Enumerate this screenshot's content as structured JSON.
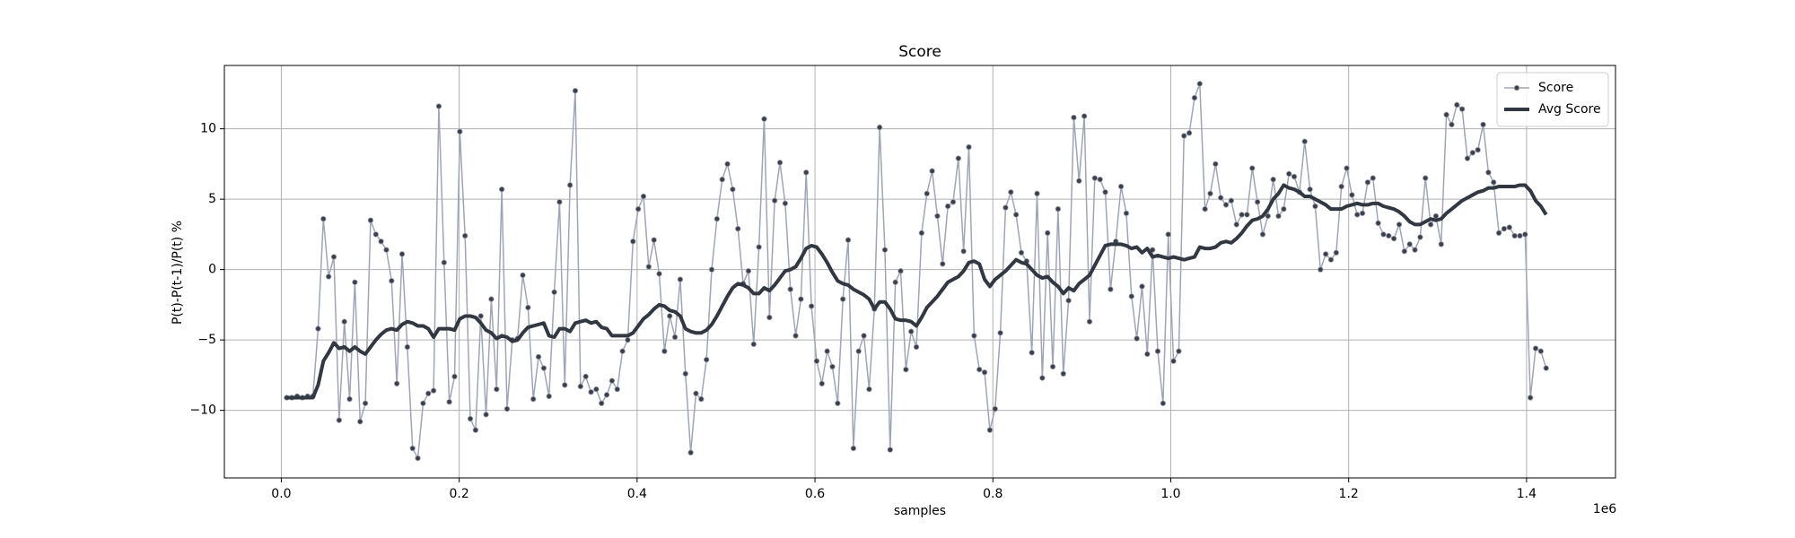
{
  "chart_data": {
    "type": "line",
    "title": "Score",
    "xlabel": "samples",
    "ylabel": "P(t)-P(t-1)/P(t) %",
    "x_offset_label": "1e6",
    "grid": true,
    "legend": "upper right",
    "xlim": [
      -64000,
      1500000
    ],
    "ylim": [
      -14.8,
      14.5
    ],
    "xticks": [
      {
        "value": 0,
        "label": "0.0"
      },
      {
        "value": 200000,
        "label": "0.2"
      },
      {
        "value": 400000,
        "label": "0.4"
      },
      {
        "value": 600000,
        "label": "0.6"
      },
      {
        "value": 800000,
        "label": "0.8"
      },
      {
        "value": 1000000,
        "label": "1.0"
      },
      {
        "value": 1200000,
        "label": "1.2"
      },
      {
        "value": 1400000,
        "label": "1.4"
      }
    ],
    "yticks": [
      {
        "value": -10,
        "label": "−10"
      },
      {
        "value": -5,
        "label": "−5"
      },
      0,
      5,
      10
    ],
    "x": [
      6000,
      11900,
      17800,
      23700,
      29600,
      35500,
      41400,
      47300,
      53200,
      59100,
      65000,
      70900,
      76800,
      82700,
      88600,
      94500,
      100400,
      106300,
      112200,
      118100,
      124000,
      129900,
      135800,
      141700,
      147600,
      153500,
      159400,
      165300,
      171200,
      177100,
      183000,
      188900,
      194800,
      200700,
      206600,
      212500,
      218400,
      224300,
      230200,
      236100,
      242000,
      247900,
      253800,
      259700,
      265600,
      271500,
      277400,
      283300,
      289200,
      295100,
      301000,
      306900,
      312800,
      318700,
      324600,
      330500,
      336400,
      342300,
      348200,
      354100,
      360000,
      365900,
      371800,
      377700,
      383600,
      389500,
      395400,
      401300,
      407200,
      413100,
      419000,
      424900,
      430800,
      436700,
      442600,
      448500,
      454400,
      460300,
      466200,
      472100,
      478000,
      483900,
      489800,
      495700,
      501600,
      507500,
      513400,
      519300,
      525200,
      531100,
      537000,
      542900,
      548800,
      554700,
      560600,
      566500,
      572400,
      578300,
      584200,
      590100,
      596000,
      601900,
      607800,
      613700,
      619600,
      625500,
      631400,
      637300,
      643200,
      649100,
      655000,
      660900,
      666800,
      672700,
      678600,
      684500,
      690400,
      696300,
      702200,
      708100,
      714000,
      719900,
      725800,
      731700,
      737600,
      743500,
      749400,
      755300,
      761200,
      767100,
      773000,
      778900,
      784800,
      790700,
      796600,
      802500,
      808400,
      814300,
      820200,
      826100,
      832000,
      837900,
      843800,
      849700,
      855600,
      861500,
      867400,
      873300,
      879200,
      885100,
      891000,
      896900,
      902800,
      908700,
      914600,
      920500,
      926400,
      932300,
      938200,
      944100,
      950000,
      955900,
      961800,
      967700,
      973600,
      979500,
      985400,
      991300,
      997200,
      1003100,
      1009000,
      1014900,
      1020800,
      1026700,
      1032600,
      1038500,
      1044400,
      1050300,
      1056200,
      1062100,
      1068000,
      1073900,
      1079800,
      1085700,
      1091600,
      1097500,
      1103400,
      1109300,
      1115200,
      1121100,
      1127000,
      1132900,
      1138800,
      1144700,
      1150600,
      1156500,
      1162400,
      1168300,
      1174200,
      1180100,
      1186000,
      1191900,
      1197800,
      1203700,
      1209600,
      1215500,
      1221400,
      1227300,
      1233200,
      1239100,
      1245000,
      1250900,
      1256800,
      1262700,
      1268600,
      1274500,
      1280400,
      1286300,
      1292200,
      1298100,
      1304000,
      1309900,
      1315800,
      1321700,
      1327600,
      1333500,
      1339400,
      1345300,
      1351200,
      1357100,
      1363000,
      1368900,
      1374800,
      1380700,
      1386600,
      1392500,
      1398400,
      1404300,
      1410200,
      1416100,
      1422000
    ],
    "series": [
      {
        "name": "Score",
        "color": "#a0a5b5",
        "marker_color": "#3a3f4a",
        "marker": "o",
        "line_width": 1.5,
        "values": [
          -9.1,
          -9.1,
          -9.0,
          -9.1,
          -9.0,
          -9.0,
          -4.2,
          3.6,
          -0.5,
          0.9,
          -10.7,
          -3.7,
          -9.2,
          -0.9,
          -10.8,
          -9.5,
          3.5,
          2.5,
          2.0,
          1.4,
          -0.8,
          -8.1,
          1.1,
          -5.5,
          -12.7,
          -13.4,
          -9.5,
          -8.8,
          -8.6,
          11.6,
          0.5,
          -9.4,
          -7.6,
          9.8,
          2.4,
          -10.6,
          -11.4,
          -3.3,
          -10.3,
          -2.1,
          -8.5,
          5.7,
          -9.9,
          -5.0,
          -4.9,
          -0.4,
          -2.7,
          -9.2,
          -6.2,
          -7.0,
          -9.0,
          -1.6,
          4.8,
          -8.2,
          6.0,
          12.7,
          -8.3,
          -7.6,
          -8.7,
          -8.5,
          -9.5,
          -8.9,
          -7.9,
          -8.5,
          -5.8,
          -5.0,
          2.0,
          4.3,
          5.2,
          0.2,
          2.1,
          -0.3,
          -5.8,
          -3.3,
          -4.8,
          -0.7,
          -7.4,
          -13.0,
          -8.8,
          -9.2,
          -6.4,
          0.0,
          3.6,
          6.4,
          7.5,
          5.7,
          2.9,
          -1.0,
          -0.1,
          -5.3,
          1.6,
          10.7,
          -3.4,
          4.9,
          7.6,
          4.7,
          -1.4,
          -4.7,
          -2.1,
          6.9,
          -2.6,
          -6.5,
          -8.1,
          -5.8,
          -6.9,
          -9.5,
          -2.1,
          2.1,
          -12.7,
          -5.8,
          -4.7,
          -8.5,
          -2.8,
          10.1,
          1.4,
          -12.8,
          -0.9,
          -0.1,
          -7.1,
          -4.4,
          -5.5,
          2.6,
          5.4,
          7.0,
          3.8,
          0.4,
          4.5,
          4.8,
          7.9,
          1.3,
          8.7,
          -4.7,
          -7.1,
          -7.3,
          -11.4,
          -9.9,
          -4.5,
          4.4,
          5.5,
          3.9,
          1.2,
          0.6,
          -5.9,
          5.4,
          -7.7,
          2.6,
          -6.9,
          4.3,
          -7.4,
          -2.2,
          10.8,
          6.3,
          10.9,
          -3.7,
          6.5,
          6.4,
          5.5,
          -1.4,
          2.0,
          5.9,
          4.0,
          -1.9,
          -4.9,
          -1.2,
          -6.0,
          1.4,
          -5.8,
          -9.5,
          2.5,
          -6.5,
          -5.8,
          9.5,
          9.7,
          12.2,
          13.2,
          4.3,
          5.4,
          7.5,
          5.1,
          4.6,
          4.9,
          3.2,
          3.9,
          3.9,
          7.2,
          4.8,
          2.5,
          3.8,
          6.4,
          3.8,
          4.3,
          6.8,
          6.6,
          5.5,
          9.1,
          5.7,
          4.5,
          0.0,
          1.1,
          0.7,
          1.2,
          5.9,
          7.2,
          5.3,
          3.9,
          4.0,
          6.2,
          6.5,
          3.3,
          2.5,
          2.4,
          2.2,
          3.2,
          1.3,
          1.8,
          1.4,
          2.3,
          6.5,
          3.2,
          3.8,
          1.8,
          11.0,
          10.3,
          11.7,
          11.4,
          7.9,
          8.3,
          8.5,
          10.3,
          6.9,
          6.2,
          2.6,
          2.9,
          3.0,
          2.4,
          2.4,
          2.5,
          -9.1,
          -5.6,
          -5.8,
          -7.0
        ]
      },
      {
        "name": "Avg Score",
        "color": "#323842",
        "line_width": 4,
        "values": [
          -9.1,
          -9.1,
          -9.1,
          -9.1,
          -9.1,
          -9.1,
          -8.2,
          -6.5,
          -5.9,
          -5.2,
          -5.6,
          -5.5,
          -5.8,
          -5.5,
          -5.8,
          -6.0,
          -5.5,
          -5.0,
          -4.6,
          -4.3,
          -4.2,
          -4.3,
          -3.9,
          -3.7,
          -3.8,
          -4.0,
          -4.0,
          -4.2,
          -4.8,
          -4.2,
          -4.2,
          -4.2,
          -4.3,
          -3.5,
          -3.3,
          -3.3,
          -3.4,
          -3.8,
          -4.3,
          -4.5,
          -4.9,
          -4.7,
          -4.8,
          -5.1,
          -5.0,
          -4.5,
          -4.1,
          -4.0,
          -3.9,
          -3.8,
          -4.7,
          -4.8,
          -4.2,
          -4.2,
          -4.4,
          -3.8,
          -3.7,
          -3.6,
          -3.8,
          -3.7,
          -4.1,
          -4.2,
          -4.7,
          -4.7,
          -4.7,
          -4.7,
          -4.5,
          -4.0,
          -3.5,
          -3.2,
          -2.8,
          -2.5,
          -2.6,
          -2.9,
          -3.0,
          -3.3,
          -4.2,
          -4.4,
          -4.5,
          -4.5,
          -4.3,
          -3.9,
          -3.3,
          -2.6,
          -1.9,
          -1.3,
          -1.0,
          -1.1,
          -1.3,
          -1.7,
          -1.7,
          -1.3,
          -1.5,
          -1.1,
          -0.6,
          -0.1,
          0.0,
          0.2,
          0.8,
          1.5,
          1.7,
          1.6,
          1.1,
          0.5,
          -0.2,
          -0.8,
          -1.0,
          -1.1,
          -1.4,
          -1.6,
          -1.8,
          -2.1,
          -2.8,
          -2.3,
          -2.3,
          -2.8,
          -3.5,
          -3.6,
          -3.6,
          -3.7,
          -4.0,
          -3.4,
          -2.7,
          -2.3,
          -1.9,
          -1.4,
          -0.9,
          -0.7,
          -0.5,
          -0.1,
          0.5,
          0.6,
          0.4,
          -0.7,
          -1.2,
          -0.7,
          -0.4,
          -0.1,
          0.3,
          0.7,
          0.5,
          0.4,
          0.0,
          -0.4,
          -0.6,
          -0.5,
          -0.9,
          -1.2,
          -1.7,
          -1.3,
          -1.5,
          -1.0,
          -0.7,
          -0.4,
          0.3,
          1.0,
          1.7,
          1.8,
          1.8,
          1.8,
          1.7,
          1.5,
          1.6,
          1.2,
          1.5,
          0.9,
          1.0,
          0.9,
          0.8,
          0.9,
          0.8,
          0.7,
          0.8,
          0.9,
          1.6,
          1.5,
          1.5,
          1.6,
          1.9,
          2.0,
          1.9,
          2.2,
          2.6,
          3.1,
          3.5,
          3.6,
          3.8,
          4.3,
          5.0,
          5.4,
          6.0,
          5.8,
          5.7,
          5.5,
          5.2,
          5.2,
          5.0,
          4.8,
          4.6,
          4.3,
          4.3,
          4.3,
          4.5,
          4.6,
          4.7,
          4.6,
          4.6,
          4.7,
          4.7,
          4.5,
          4.4,
          4.3,
          4.1,
          3.8,
          3.4,
          3.2,
          3.2,
          3.4,
          3.6,
          3.5,
          3.6,
          4.0,
          4.3,
          4.6,
          4.9,
          5.1,
          5.3,
          5.5,
          5.6,
          5.8,
          5.8,
          5.9,
          5.9,
          5.9,
          5.9,
          6.0,
          6.0,
          5.6,
          4.9,
          4.5,
          3.9
        ]
      }
    ]
  }
}
